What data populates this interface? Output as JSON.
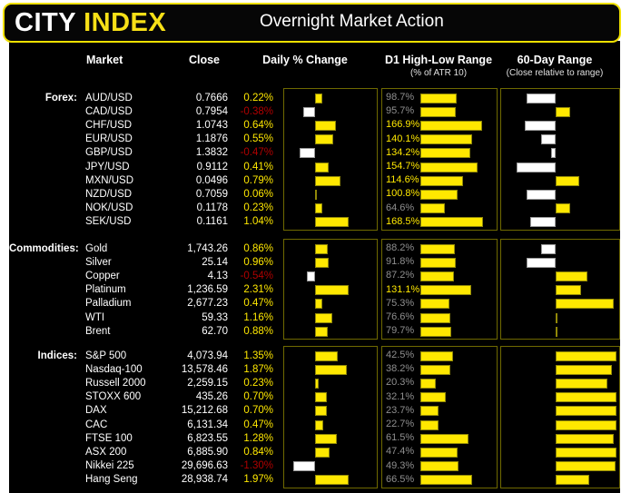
{
  "header": {
    "logo_city": "CITY",
    "logo_index": "INDEX",
    "title": "Overnight Market Action"
  },
  "columns": {
    "market": "Market",
    "close": "Close",
    "daily": "Daily % Change",
    "d1": "D1 High-Low Range",
    "d1_sub": "(% of ATR 10)",
    "r60": "60-Day Range",
    "r60_sub": "(Close relative to range)"
  },
  "colors": {
    "accent_yellow": "#ffe800",
    "logo_yellow": "#f7e017",
    "negative_red": "#b00000",
    "muted_gray": "#8f8f8f",
    "panel_border": "#6f6900",
    "text_white": "#ffffff",
    "background": "#000000"
  },
  "chart_data": {
    "type": "table",
    "title": "Overnight Market Action",
    "legend": "Daily % Change bars: yellow = positive (right of baseline), white = negative (left of baseline). D1 High-Low Range: yellow label when >= 100% of ATR 10, gray otherwise. 60-Day Range: white bar = close below range midpoint, yellow bar = close above range midpoint.",
    "sections": [
      {
        "label": "Forex:",
        "rows": [
          {
            "market": "AUD/USD",
            "close": "0.7666",
            "daily_pct": 0.22,
            "daily_label": "0.22%",
            "d1_pct": 98.7,
            "d1_label": "98.7%",
            "r60": -0.53
          },
          {
            "market": "CAD/USD",
            "close": "0.7954",
            "daily_pct": -0.38,
            "daily_label": "-0.38%",
            "d1_pct": 95.7,
            "d1_label": "95.7%",
            "r60": 0.23
          },
          {
            "market": "CHF/USD",
            "close": "1.0743",
            "daily_pct": 0.64,
            "daily_label": "0.64%",
            "d1_pct": 166.9,
            "d1_label": "166.9%",
            "r60": -0.57
          },
          {
            "market": "EUR/USD",
            "close": "1.1876",
            "daily_pct": 0.55,
            "daily_label": "0.55%",
            "d1_pct": 140.1,
            "d1_label": "140.1%",
            "r60": -0.27
          },
          {
            "market": "GBP/USD",
            "close": "1.3832",
            "daily_pct": -0.47,
            "daily_label": "-0.47%",
            "d1_pct": 134.2,
            "d1_label": "134.2%",
            "r60": -0.08
          },
          {
            "market": "JPY/USD",
            "close": "0.9112",
            "daily_pct": 0.41,
            "daily_label": "0.41%",
            "d1_pct": 154.7,
            "d1_label": "154.7%",
            "r60": -0.72
          },
          {
            "market": "MXN/USD",
            "close": "0.0496",
            "daily_pct": 0.79,
            "daily_label": "0.79%",
            "d1_pct": 114.6,
            "d1_label": "114.6%",
            "r60": 0.37
          },
          {
            "market": "NZD/USD",
            "close": "0.7059",
            "daily_pct": 0.06,
            "daily_label": "0.06%",
            "d1_pct": 100.8,
            "d1_label": "100.8%",
            "r60": -0.53
          },
          {
            "market": "NOK/USD",
            "close": "0.1178",
            "daily_pct": 0.23,
            "daily_label": "0.23%",
            "d1_pct": 64.6,
            "d1_label": "64.6%",
            "r60": 0.23
          },
          {
            "market": "SEK/USD",
            "close": "0.1161",
            "daily_pct": 1.04,
            "daily_label": "1.04%",
            "d1_pct": 168.5,
            "d1_label": "168.5%",
            "r60": -0.47
          }
        ]
      },
      {
        "label": "Commodities:",
        "rows": [
          {
            "market": "Gold",
            "close": "1,743.26",
            "daily_pct": 0.86,
            "daily_label": "0.86%",
            "d1_pct": 88.2,
            "d1_label": "88.2%",
            "r60": -0.27
          },
          {
            "market": "Silver",
            "close": "25.14",
            "daily_pct": 0.96,
            "daily_label": "0.96%",
            "d1_pct": 91.8,
            "d1_label": "91.8%",
            "r60": -0.53
          },
          {
            "market": "Copper",
            "close": "4.13",
            "daily_pct": -0.54,
            "daily_label": "-0.54%",
            "d1_pct": 87.2,
            "d1_label": "87.2%",
            "r60": 0.5
          },
          {
            "market": "Platinum",
            "close": "1,236.59",
            "daily_pct": 2.31,
            "daily_label": "2.31%",
            "d1_pct": 131.1,
            "d1_label": "131.1%",
            "r60": 0.4
          },
          {
            "market": "Palladium",
            "close": "2,677.23",
            "daily_pct": 0.47,
            "daily_label": "0.47%",
            "d1_pct": 75.3,
            "d1_label": "75.3%",
            "r60": 0.93
          },
          {
            "market": "WTI",
            "close": "59.33",
            "daily_pct": 1.16,
            "daily_label": "1.16%",
            "d1_pct": 76.6,
            "d1_label": "76.6%",
            "r60": 0.03
          },
          {
            "market": "Brent",
            "close": "62.70",
            "daily_pct": 0.88,
            "daily_label": "0.88%",
            "d1_pct": 79.7,
            "d1_label": "79.7%",
            "r60": 0.03
          }
        ]
      },
      {
        "label": "Indices:",
        "rows": [
          {
            "market": "S&P 500",
            "close": "4,073.94",
            "daily_pct": 1.35,
            "daily_label": "1.35%",
            "d1_pct": 42.5,
            "d1_label": "42.5%",
            "r60": 0.97
          },
          {
            "market": "Nasdaq-100",
            "close": "13,578.46",
            "daily_pct": 1.87,
            "daily_label": "1.87%",
            "d1_pct": 38.2,
            "d1_label": "38.2%",
            "r60": 0.9
          },
          {
            "market": "Russell 2000",
            "close": "2,259.15",
            "daily_pct": 0.23,
            "daily_label": "0.23%",
            "d1_pct": 20.3,
            "d1_label": "20.3%",
            "r60": 0.82
          },
          {
            "market": "STOXX 600",
            "close": "435.26",
            "daily_pct": 0.7,
            "daily_label": "0.70%",
            "d1_pct": 32.1,
            "d1_label": "32.1%",
            "r60": 0.97
          },
          {
            "market": "DAX",
            "close": "15,212.68",
            "daily_pct": 0.7,
            "daily_label": "0.70%",
            "d1_pct": 23.7,
            "d1_label": "23.7%",
            "r60": 0.97
          },
          {
            "market": "CAC",
            "close": "6,131.34",
            "daily_pct": 0.47,
            "daily_label": "0.47%",
            "d1_pct": 22.7,
            "d1_label": "22.7%",
            "r60": 0.97
          },
          {
            "market": "FTSE 100",
            "close": "6,823.55",
            "daily_pct": 1.28,
            "daily_label": "1.28%",
            "d1_pct": 61.5,
            "d1_label": "61.5%",
            "r60": 0.93
          },
          {
            "market": "ASX 200",
            "close": "6,885.90",
            "daily_pct": 0.84,
            "daily_label": "0.84%",
            "d1_pct": 47.4,
            "d1_label": "47.4%",
            "r60": 0.97
          },
          {
            "market": "Nikkei 225",
            "close": "29,696.63",
            "daily_pct": -1.3,
            "daily_label": "-1.30%",
            "d1_pct": 49.3,
            "d1_label": "49.3%",
            "r60": 0.95
          },
          {
            "market": "Hang Seng",
            "close": "28,938.74",
            "daily_pct": 1.97,
            "daily_label": "1.97%",
            "d1_pct": 66.5,
            "d1_label": "66.5%",
            "r60": 0.53
          }
        ]
      }
    ]
  }
}
